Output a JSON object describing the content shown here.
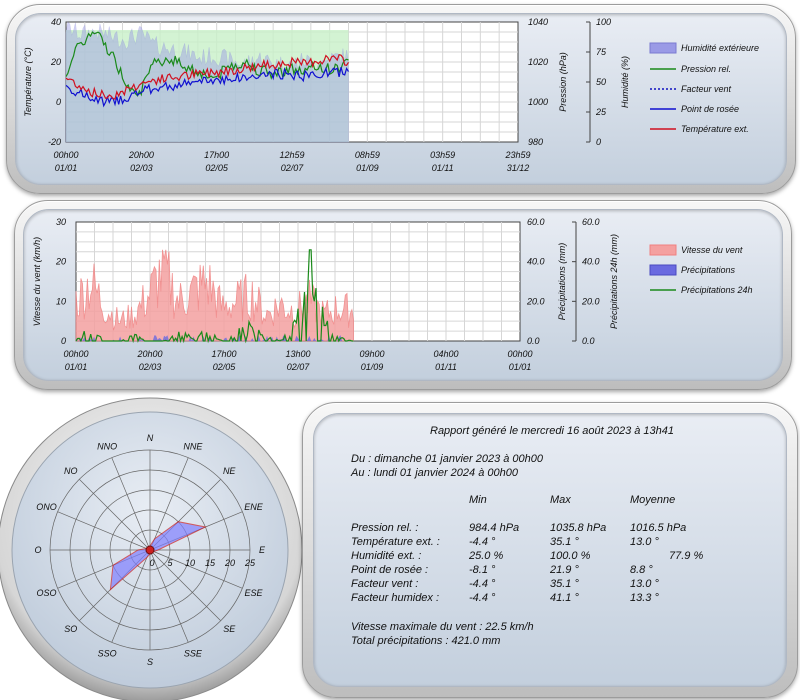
{
  "chart_data": [
    {
      "type": "line",
      "x_tick_labels": [
        {
          "time": "00h00",
          "date": "01/01"
        },
        {
          "time": "20h00",
          "date": "02/03"
        },
        {
          "time": "17h00",
          "date": "02/05"
        },
        {
          "time": "12h59",
          "date": "02/07"
        },
        {
          "time": "08h59",
          "date": "01/09"
        },
        {
          "time": "03h59",
          "date": "01/11"
        },
        {
          "time": "23h59",
          "date": "31/12"
        }
      ],
      "y_left": {
        "label": "Température (°C)",
        "ticks": [
          "40",
          "20",
          "0",
          "-20"
        ],
        "ylim": [
          -20,
          40
        ]
      },
      "y_right1": {
        "label": "Pression (hPa)",
        "ticks": [
          "1040",
          "1020",
          "1000",
          "980"
        ],
        "ylim": [
          980,
          1040
        ]
      },
      "y_right2": {
        "label": "Humidité (%)",
        "ticks": [
          "100",
          "75",
          "50",
          "25",
          "0"
        ],
        "ylim": [
          0,
          100
        ]
      },
      "legend": [
        "Humidité extérieure",
        "Pression rel.",
        "Facteur vent",
        "Point de rosée",
        "Température ext."
      ],
      "colors": {
        "humidity": "#9a9ae6",
        "pressure": "#1a8a1a",
        "windchill": "#1010c0",
        "dewpoint": "#1010d0",
        "temperature": "#d01020",
        "fill_green": "#c8f0c8"
      },
      "data_fraction_of_year": 0.625,
      "series": [
        {
          "name": "Température ext.",
          "values": [
            12,
            8,
            4,
            3,
            6,
            9,
            11,
            12,
            13,
            14,
            15,
            16,
            17,
            18,
            19,
            20,
            19,
            21,
            22,
            20
          ]
        },
        {
          "name": "Point de rosée",
          "values": [
            8,
            4,
            1,
            0,
            2,
            5,
            7,
            8,
            9,
            10,
            11,
            12,
            12,
            13,
            14,
            14,
            13,
            14,
            15,
            15
          ]
        },
        {
          "name": "Pression rel.",
          "values": [
            1015,
            1030,
            1035,
            1025,
            1010,
            1005,
            1020,
            1022,
            1018,
            1015,
            1012,
            1018,
            1020,
            1016,
            1014,
            1017,
            1015,
            1018,
            1016,
            1020
          ]
        },
        {
          "name": "Humidité extérieure",
          "values": [
            95,
            90,
            92,
            88,
            85,
            90,
            80,
            78,
            75,
            70,
            72,
            68,
            65,
            70,
            66,
            64,
            68,
            65,
            70,
            72
          ]
        }
      ]
    },
    {
      "type": "area",
      "x_tick_labels": [
        {
          "time": "00h00",
          "date": "01/01"
        },
        {
          "time": "20h00",
          "date": "02/03"
        },
        {
          "time": "17h00",
          "date": "02/05"
        },
        {
          "time": "13h00",
          "date": "02/07"
        },
        {
          "time": "09h00",
          "date": "01/09"
        },
        {
          "time": "04h00",
          "date": "01/11"
        },
        {
          "time": "00h00",
          "date": "01/01"
        }
      ],
      "y_left": {
        "label": "Vitesse du vent (km/h)",
        "ticks": [
          "30",
          "20",
          "10",
          "0"
        ],
        "ylim": [
          0,
          30
        ]
      },
      "y_right1": {
        "label": "Précipitations (mm)",
        "ticks": [
          "60.0",
          "40.0",
          "20.0",
          "0.0"
        ],
        "ylim": [
          0,
          60
        ]
      },
      "y_right2": {
        "label": "Précipitations 24h (mm)",
        "ticks": [
          "60.0",
          "40.0",
          "20.0",
          "0.0"
        ],
        "ylim": [
          0,
          60
        ]
      },
      "legend": [
        "Vitesse du vent",
        "Précipitations",
        "Précipitations 24h"
      ],
      "colors": {
        "wind": "#f08080",
        "wind_fill": "#f4a0a0",
        "precip": "#6a6ae0",
        "precip24": "#1a8a1a"
      },
      "data_fraction_of_year": 0.625,
      "series": [
        {
          "name": "Vitesse du vent",
          "values": [
            12,
            18,
            10,
            6,
            8,
            14,
            22,
            12,
            15,
            18,
            10,
            12,
            14,
            8,
            11,
            9,
            12,
            8,
            10,
            9
          ]
        },
        {
          "name": "Précipitations 24h",
          "values": [
            2,
            6,
            0,
            0,
            3,
            0,
            0,
            4,
            2,
            6,
            0,
            4,
            8,
            2,
            0,
            8,
            45,
            10,
            2,
            0
          ]
        }
      ]
    },
    {
      "type": "radar",
      "directions": [
        "N",
        "NNE",
        "NE",
        "ENE",
        "E",
        "ESE",
        "SE",
        "SSE",
        "S",
        "SSO",
        "SO",
        "OSO",
        "O",
        "ONO",
        "NO",
        "NNO"
      ],
      "ticks": [
        "0",
        "5",
        "10",
        "15",
        "20",
        "25"
      ],
      "rmax": 25,
      "values": [
        1,
        3,
        10,
        15,
        2,
        1,
        1,
        1,
        1,
        2,
        14,
        10,
        3,
        1,
        1,
        1
      ],
      "fill": "#8080ff",
      "stroke": "#cc2020"
    }
  ],
  "report": {
    "title": "Rapport généré le mercredi 16 août 2023 à 13h41",
    "from": "Du : dimanche 01 janvier 2023 à 00h00",
    "to": "Au : lundi 01 janvier 2024 à 00h00",
    "headers": [
      "Min",
      "Max",
      "Moyenne"
    ],
    "rows": [
      {
        "label": "Pression rel. :",
        "min": "984.4 hPa",
        "max": "1035.8 hPa",
        "avg": "1016.5 hPa"
      },
      {
        "label": "Température ext. :",
        "min": "-4.4 °",
        "max": "35.1 °",
        "avg": "13.0 °"
      },
      {
        "label": "Humidité ext. :",
        "min": "25.0 %",
        "max": "100.0 %",
        "avg": "77.9 %"
      },
      {
        "label": "Point de rosée :",
        "min": "-8.1 °",
        "max": "21.9 °",
        "avg": "8.8 °"
      },
      {
        "label": "Facteur vent :",
        "min": "-4.4 °",
        "max": "35.1 °",
        "avg": "13.0 °"
      },
      {
        "label": "Facteur humidex :",
        "min": "-4.4 °",
        "max": "41.1 °",
        "avg": "13.3 °"
      }
    ],
    "max_wind": "Vitesse maximale du vent : 22.5 km/h",
    "total_precip": "Total précipitations : 421.0 mm"
  }
}
